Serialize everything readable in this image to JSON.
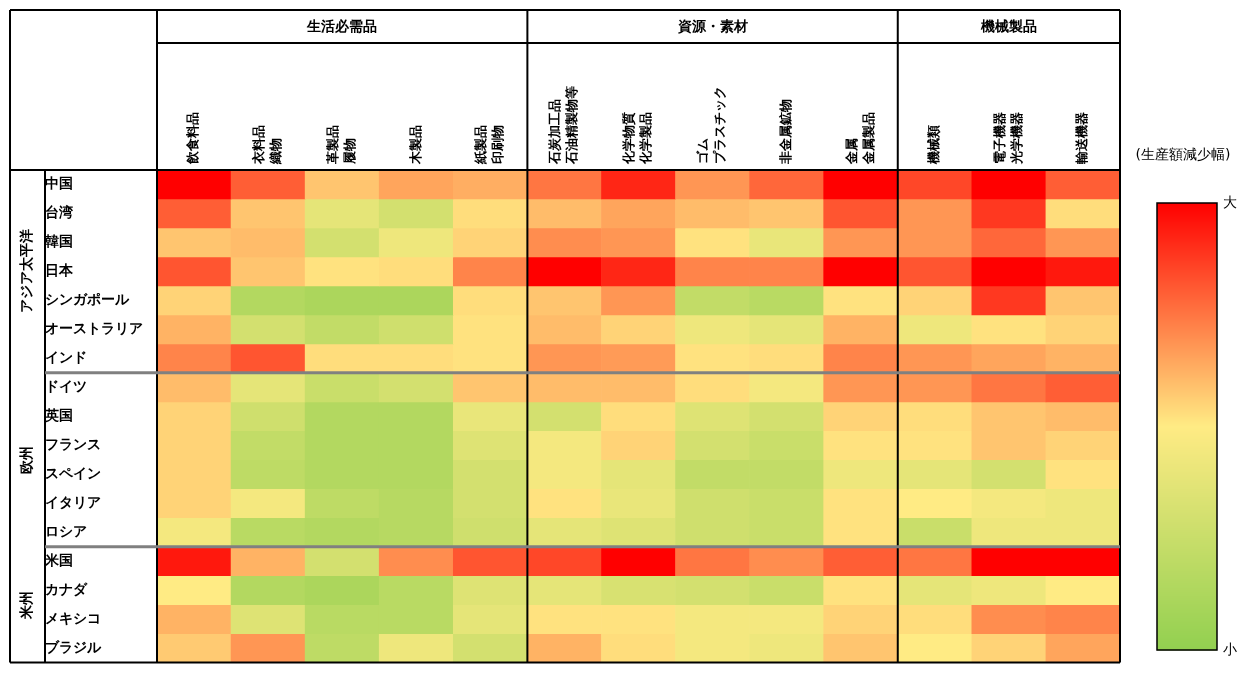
{
  "chart_data": {
    "type": "heatmap",
    "categories": [
      "飲食料品",
      "衣料品織物",
      "革製品履物",
      "木製品",
      "紙製品印刷物",
      "石炭加工品石油精製物等",
      "化学物質化学製品",
      "ゴムプラスチック",
      "非金属鉱物",
      "金属金属製品",
      "機械類",
      "電子機器光学機器",
      "輸送機器"
    ],
    "y_categories": [
      "中国",
      "台湾",
      "韓国",
      "日本",
      "シンガポール",
      "オーストラリア",
      "インド",
      "ドイツ",
      "英国",
      "フランス",
      "スペイン",
      "イタリア",
      "ロシア",
      "米国",
      "カナダ",
      "メキシコ",
      "ブラジル"
    ],
    "cells": [
      [
        1.0,
        0.8,
        0.58,
        0.65,
        0.63,
        0.75,
        0.92,
        0.68,
        0.78,
        1.0,
        0.85,
        1.0,
        0.8
      ],
      [
        0.8,
        0.58,
        0.38,
        0.3,
        0.53,
        0.6,
        0.65,
        0.6,
        0.58,
        0.82,
        0.68,
        0.88,
        0.53
      ],
      [
        0.58,
        0.6,
        0.3,
        0.42,
        0.55,
        0.7,
        0.68,
        0.52,
        0.4,
        0.68,
        0.68,
        0.78,
        0.68
      ],
      [
        0.82,
        0.58,
        0.52,
        0.53,
        0.72,
        1.0,
        0.92,
        0.72,
        0.72,
        1.0,
        0.82,
        1.0,
        0.95
      ],
      [
        0.55,
        0.15,
        0.12,
        0.12,
        0.53,
        0.58,
        0.68,
        0.22,
        0.18,
        0.52,
        0.55,
        0.88,
        0.58
      ],
      [
        0.62,
        0.3,
        0.22,
        0.28,
        0.52,
        0.6,
        0.55,
        0.42,
        0.38,
        0.62,
        0.42,
        0.52,
        0.55
      ],
      [
        0.72,
        0.82,
        0.53,
        0.53,
        0.52,
        0.68,
        0.67,
        0.52,
        0.53,
        0.72,
        0.68,
        0.65,
        0.62
      ],
      [
        0.6,
        0.38,
        0.25,
        0.3,
        0.58,
        0.6,
        0.6,
        0.53,
        0.45,
        0.68,
        0.68,
        0.75,
        0.8
      ],
      [
        0.55,
        0.28,
        0.15,
        0.15,
        0.4,
        0.3,
        0.53,
        0.35,
        0.3,
        0.55,
        0.53,
        0.58,
        0.6
      ],
      [
        0.55,
        0.22,
        0.15,
        0.15,
        0.35,
        0.45,
        0.55,
        0.3,
        0.25,
        0.52,
        0.52,
        0.58,
        0.55
      ],
      [
        0.55,
        0.2,
        0.15,
        0.15,
        0.3,
        0.45,
        0.38,
        0.22,
        0.22,
        0.42,
        0.38,
        0.3,
        0.52
      ],
      [
        0.55,
        0.45,
        0.2,
        0.17,
        0.3,
        0.52,
        0.4,
        0.28,
        0.25,
        0.52,
        0.5,
        0.45,
        0.42
      ],
      [
        0.45,
        0.18,
        0.15,
        0.17,
        0.28,
        0.38,
        0.35,
        0.28,
        0.25,
        0.52,
        0.25,
        0.42,
        0.42
      ],
      [
        0.95,
        0.62,
        0.3,
        0.7,
        0.82,
        0.85,
        1.0,
        0.75,
        0.7,
        0.8,
        0.75,
        1.0,
        1.0
      ],
      [
        0.5,
        0.15,
        0.12,
        0.18,
        0.35,
        0.38,
        0.32,
        0.3,
        0.25,
        0.52,
        0.38,
        0.42,
        0.5
      ],
      [
        0.62,
        0.35,
        0.18,
        0.18,
        0.38,
        0.52,
        0.52,
        0.45,
        0.45,
        0.55,
        0.53,
        0.7,
        0.72
      ],
      [
        0.57,
        0.68,
        0.2,
        0.42,
        0.3,
        0.62,
        0.53,
        0.45,
        0.42,
        0.58,
        0.5,
        0.55,
        0.65
      ]
    ],
    "clim": [
      0,
      1
    ],
    "cticks": [
      {
        "value": 1,
        "label": "大"
      },
      {
        "value": 0,
        "label": "小"
      }
    ],
    "clabel": "(生産額減少幅)",
    "annotations": [
      "生活必需品",
      "資源・素材",
      "機械製品",
      "アジア太平洋",
      "欧州",
      "米州"
    ]
  }
}
